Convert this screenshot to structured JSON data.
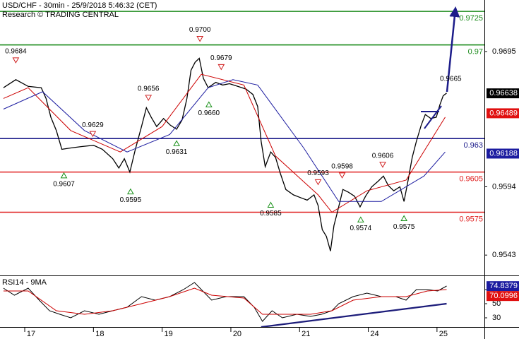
{
  "header": {
    "title": "USD/CHF - 30min - 25/9/2018 5:46:32 (CET)",
    "subtitle": "Research © TRADING CENTRAL"
  },
  "chart_data": [
    {
      "type": "line",
      "xlim": [
        -0.36,
        6.69
      ],
      "ylim": [
        0.95278,
        0.97335
      ],
      "yticks": [
        0.9695,
        0.9594,
        0.9543
      ],
      "series": [
        {
          "color": "#000000",
          "width": 1.3,
          "x": [
            -0.31,
            -0.13,
            0.05,
            0.24,
            0.31,
            0.38,
            0.46,
            0.54,
            0.67,
            0.82,
            1.0,
            1.13,
            1.28,
            1.37,
            1.45,
            1.53,
            1.61,
            1.7,
            1.77,
            1.84,
            1.92,
            2.02,
            2.12,
            2.21,
            2.29,
            2.36,
            2.42,
            2.48,
            2.54,
            2.6,
            2.67,
            2.78,
            2.88,
            2.98,
            3.1,
            3.22,
            3.32,
            3.39,
            3.44,
            3.5,
            3.58,
            3.65,
            3.72,
            3.8,
            3.91,
            4.01,
            4.11,
            4.21,
            4.27,
            4.33,
            4.39,
            4.45,
            4.5,
            4.55,
            4.63,
            4.71,
            4.8,
            4.88,
            4.96,
            5.05,
            5.14,
            5.22,
            5.29,
            5.37,
            5.46,
            5.52,
            5.58,
            5.64,
            5.7,
            5.77,
            5.83,
            5.91,
            5.99,
            6.04,
            6.09,
            6.14
          ],
          "values": [
            0.9668,
            0.9674,
            0.9669,
            0.9668,
            0.966,
            0.9646,
            0.9636,
            0.9622,
            0.9623,
            0.9624,
            0.9625,
            0.9622,
            0.9615,
            0.9608,
            0.9615,
            0.9605,
            0.9622,
            0.9639,
            0.9653,
            0.9646,
            0.9639,
            0.9645,
            0.964,
            0.9637,
            0.9644,
            0.966,
            0.9681,
            0.9687,
            0.969,
            0.9675,
            0.9668,
            0.9672,
            0.967,
            0.9671,
            0.9669,
            0.9667,
            0.9663,
            0.9654,
            0.9628,
            0.9609,
            0.962,
            0.9616,
            0.9604,
            0.9592,
            0.9588,
            0.9586,
            0.9584,
            0.9588,
            0.958,
            0.9562,
            0.9557,
            0.9546,
            0.9565,
            0.9575,
            0.9592,
            0.959,
            0.9587,
            0.9579,
            0.9587,
            0.9594,
            0.9598,
            0.9602,
            0.9595,
            0.9591,
            0.9594,
            0.9583,
            0.9599,
            0.9616,
            0.9628,
            0.964,
            0.9648,
            0.9645,
            0.9646,
            0.9655,
            0.9662,
            0.9664
          ]
        },
        {
          "color": "#cc0000",
          "width": 1,
          "x": [
            -0.31,
            0.05,
            0.67,
            1.39,
            2.0,
            2.57,
            3.19,
            3.65,
            4.27,
            4.47,
            4.98,
            5.55,
            6.12
          ],
          "values": [
            0.966,
            0.9668,
            0.9636,
            0.962,
            0.9639,
            0.9678,
            0.967,
            0.9617,
            0.9588,
            0.9575,
            0.9591,
            0.9599,
            0.9646
          ]
        },
        {
          "color": "#1c1ca0",
          "width": 1,
          "x": [
            -0.31,
            0.26,
            0.87,
            1.49,
            2.11,
            2.67,
            3.03,
            3.39,
            4.06,
            4.57,
            5.19,
            5.81,
            6.12
          ],
          "values": [
            0.9652,
            0.9665,
            0.9636,
            0.962,
            0.9633,
            0.9668,
            0.9674,
            0.967,
            0.9623,
            0.9583,
            0.9583,
            0.9602,
            0.962
          ]
        }
      ],
      "levels": [
        {
          "value": 0.9725,
          "label": "0.9725",
          "color": "#1a8a1a"
        },
        {
          "value": 0.97,
          "label": "0.97",
          "color": "#1a8a1a"
        },
        {
          "value": 0.963,
          "label": "0.963",
          "color": "#1c1c8a"
        },
        {
          "value": 0.9605,
          "label": "0.9605",
          "color": "#e02020"
        },
        {
          "value": 0.9575,
          "label": "0.9575",
          "color": "#e02020"
        }
      ],
      "markers": [
        {
          "value": 0.96638,
          "color": "#000000"
        },
        {
          "value": 0.96489,
          "color": "#e01010"
        },
        {
          "value": 0.96188,
          "color": "#1c1ca0"
        }
      ],
      "annotations": [
        {
          "x": -0.13,
          "value": 0.9684,
          "label": "0.9684",
          "kind": "high"
        },
        {
          "x": 0.99,
          "value": 0.9629,
          "label": "0.9629",
          "kind": "high"
        },
        {
          "x": 1.8,
          "value": 0.9656,
          "label": "0.9656",
          "kind": "high"
        },
        {
          "x": 2.55,
          "value": 0.97,
          "label": "0.9700",
          "kind": "high"
        },
        {
          "x": 2.86,
          "value": 0.9679,
          "label": "0.9679",
          "kind": "high"
        },
        {
          "x": 4.27,
          "value": 0.9593,
          "label": "0.9593",
          "kind": "high"
        },
        {
          "x": 4.62,
          "value": 0.9598,
          "label": "0.9598",
          "kind": "high"
        },
        {
          "x": 5.21,
          "value": 0.9606,
          "label": "0.9606",
          "kind": "high"
        },
        {
          "x": 6.2,
          "value": 0.9665,
          "label": "0.9665",
          "kind": "plain"
        },
        {
          "x": 0.57,
          "value": 0.9607,
          "label": "0.9607",
          "kind": "low"
        },
        {
          "x": 1.54,
          "value": 0.9595,
          "label": "0.9595",
          "kind": "low"
        },
        {
          "x": 2.21,
          "value": 0.9631,
          "label": "0.9631",
          "kind": "low"
        },
        {
          "x": 2.68,
          "value": 0.966,
          "label": "0.9660",
          "kind": "low"
        },
        {
          "x": 3.58,
          "value": 0.9585,
          "label": "0.9585",
          "kind": "low"
        },
        {
          "x": 4.89,
          "value": 0.9574,
          "label": "0.9574",
          "kind": "low"
        },
        {
          "x": 5.52,
          "value": 0.9575,
          "label": "0.9575",
          "kind": "low"
        }
      ]
    },
    {
      "type": "line",
      "title": "RSI14 - 9MA",
      "xlim": [
        -0.36,
        6.69
      ],
      "ylim": [
        17,
        88
      ],
      "yticks": [
        70,
        50,
        30
      ],
      "xticks": [
        {
          "value": 0,
          "label": "17"
        },
        {
          "value": 1,
          "label": "18"
        },
        {
          "value": 2,
          "label": "19"
        },
        {
          "value": 3,
          "label": "20"
        },
        {
          "value": 4,
          "label": "21"
        },
        {
          "value": 5,
          "label": "24"
        },
        {
          "value": 6,
          "label": "25"
        }
      ],
      "series": [
        {
          "color": "#000000",
          "width": 1,
          "x": [
            -0.31,
            -0.15,
            0.05,
            0.21,
            0.36,
            0.51,
            0.67,
            0.87,
            1.08,
            1.28,
            1.49,
            1.7,
            1.9,
            2.11,
            2.31,
            2.47,
            2.57,
            2.72,
            2.93,
            3.19,
            3.34,
            3.46,
            3.6,
            3.75,
            3.96,
            4.16,
            4.32,
            4.47,
            4.57,
            4.78,
            4.98,
            5.19,
            5.4,
            5.55,
            5.7,
            5.86,
            6.01,
            6.14
          ],
          "values": [
            72,
            62,
            72,
            55,
            40,
            35,
            30,
            40,
            35,
            40,
            45,
            60,
            55,
            60,
            70,
            80,
            70,
            55,
            60,
            60,
            45,
            25,
            40,
            30,
            35,
            32,
            35,
            40,
            50,
            60,
            65,
            60,
            60,
            55,
            70,
            70,
            68,
            75
          ]
        },
        {
          "color": "#cc0000",
          "width": 1,
          "x": [
            -0.31,
            0.05,
            0.46,
            0.87,
            1.28,
            1.7,
            2.11,
            2.47,
            2.72,
            3.19,
            3.46,
            3.75,
            4.16,
            4.47,
            4.78,
            5.19,
            5.55,
            5.86,
            6.14
          ],
          "values": [
            68,
            68,
            40,
            35,
            40,
            50,
            60,
            72,
            62,
            58,
            35,
            35,
            35,
            40,
            55,
            60,
            60,
            68,
            70
          ]
        },
        {
          "color": "#1c1c7a",
          "width": 2.2,
          "x": [
            3.44,
            6.14
          ],
          "values": [
            17,
            50
          ]
        }
      ],
      "markers": [
        {
          "value": 74.8379,
          "color": "#1c1ca0"
        },
        {
          "value": 70.0996,
          "color": "#e01010"
        }
      ]
    }
  ]
}
